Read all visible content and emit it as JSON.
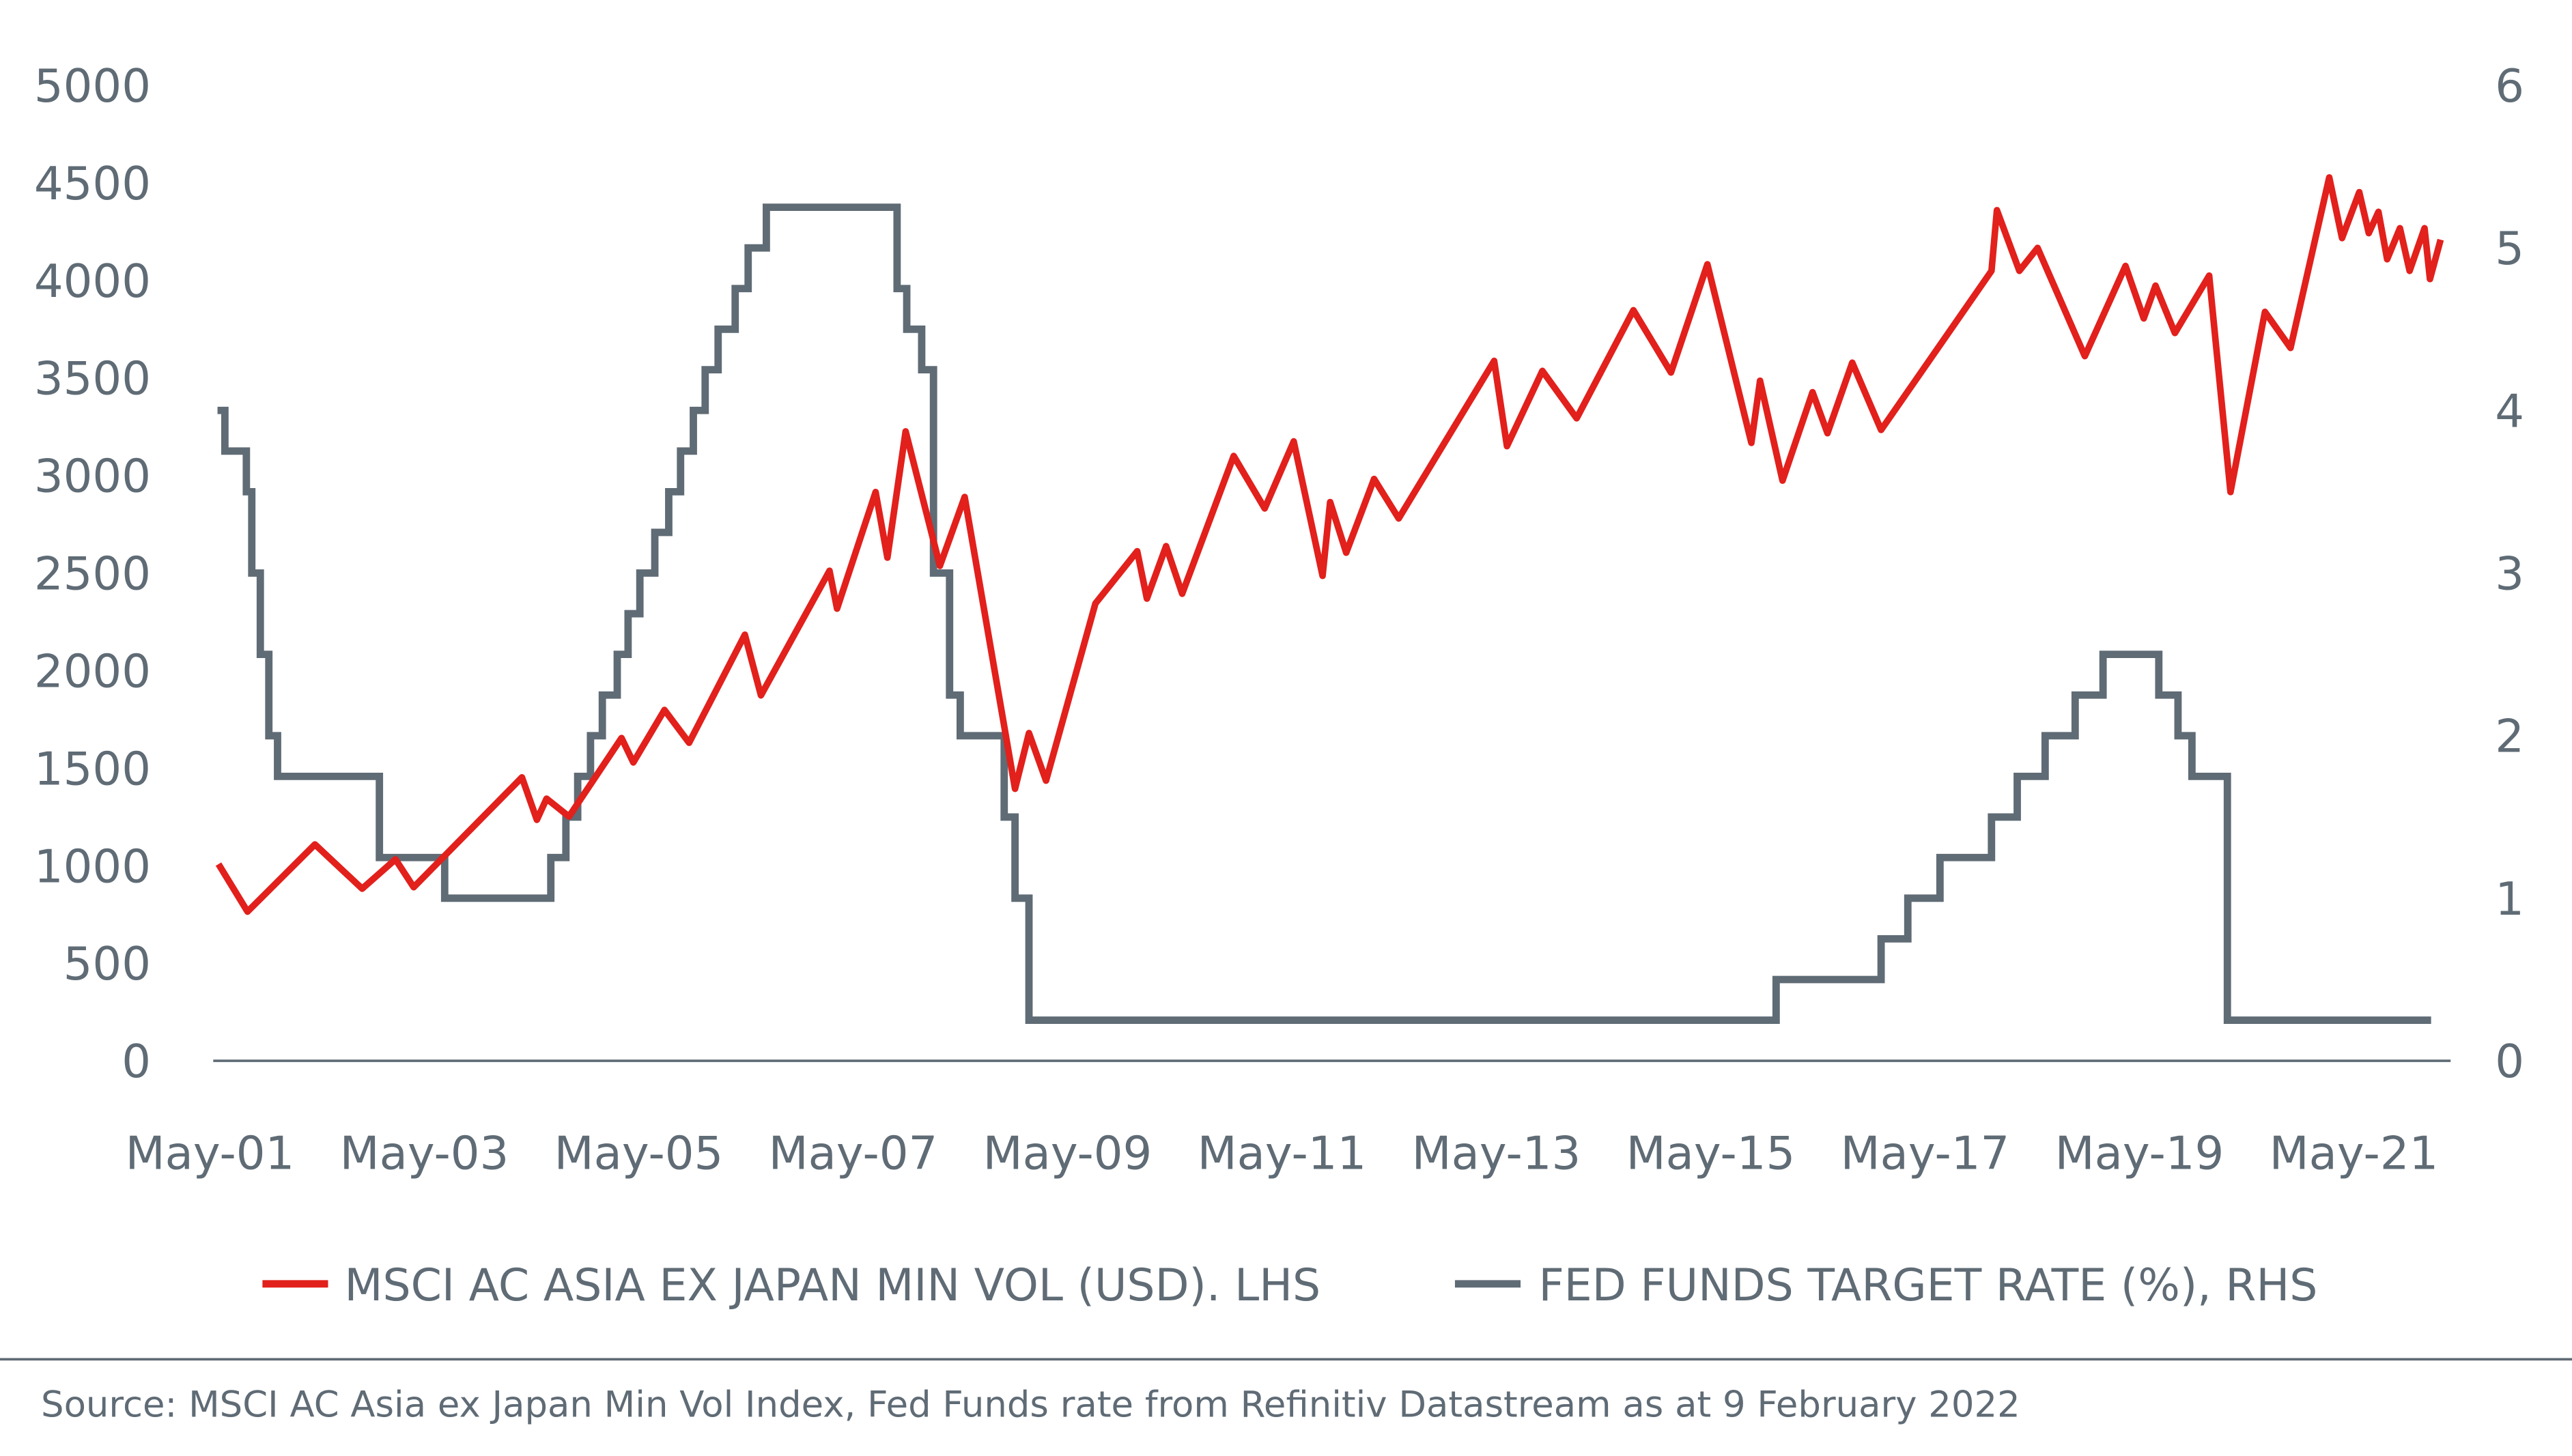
{
  "colors": {
    "msci": "#e2201c",
    "fed": "#5f6b75",
    "text": "#5f6b75"
  },
  "chart_data": {
    "type": "line",
    "title": "",
    "xlabel": "",
    "ylabel": "",
    "y2label": "",
    "ylim": [
      0,
      5000
    ],
    "y2lim": [
      0,
      6
    ],
    "xlim": [
      2001.33,
      2022.2
    ],
    "y_ticks": [
      "0",
      "500",
      "1000",
      "1500",
      "2000",
      "2500",
      "3000",
      "3500",
      "4000",
      "4500",
      "5000"
    ],
    "y2_ticks": [
      "0",
      "1",
      "2",
      "3",
      "4",
      "5",
      "6"
    ],
    "x_ticks": [
      {
        "label": "May-01",
        "x": 2001.33
      },
      {
        "label": "May-03",
        "x": 2003.33
      },
      {
        "label": "May-05",
        "x": 2005.33
      },
      {
        "label": "May-07",
        "x": 2007.33
      },
      {
        "label": "May-09",
        "x": 2009.33
      },
      {
        "label": "May-11",
        "x": 2011.33
      },
      {
        "label": "May-13",
        "x": 2013.33
      },
      {
        "label": "May-15",
        "x": 2015.33
      },
      {
        "label": "May-17",
        "x": 2017.33
      },
      {
        "label": "May-19",
        "x": 2019.33
      },
      {
        "label": "May-21",
        "x": 2021.33
      }
    ],
    "grid": false,
    "legend_position": "bottom",
    "series": [
      {
        "name": "MSCI AC ASIA EX JAPAN MIN VOL (USD). LHS",
        "axis": "left",
        "style": "line",
        "points": [
          [
            2001.41,
            1008
          ],
          [
            2001.68,
            765
          ],
          [
            2002.31,
            1109
          ],
          [
            2002.75,
            882
          ],
          [
            2003.06,
            1033
          ],
          [
            2003.23,
            890
          ],
          [
            2004.24,
            1453
          ],
          [
            2004.38,
            1235
          ],
          [
            2004.47,
            1344
          ],
          [
            2004.68,
            1252
          ],
          [
            2005.17,
            1655
          ],
          [
            2005.28,
            1529
          ],
          [
            2005.57,
            1798
          ],
          [
            2005.8,
            1630
          ],
          [
            2006.32,
            2184
          ],
          [
            2006.47,
            1873
          ],
          [
            2007.11,
            2512
          ],
          [
            2007.18,
            2318
          ],
          [
            2007.54,
            2915
          ],
          [
            2007.65,
            2579
          ],
          [
            2007.82,
            3226
          ],
          [
            2008.14,
            2537
          ],
          [
            2008.37,
            2890
          ],
          [
            2008.84,
            1394
          ],
          [
            2008.97,
            1680
          ],
          [
            2009.13,
            1436
          ],
          [
            2009.59,
            2344
          ],
          [
            2009.98,
            2612
          ],
          [
            2010.07,
            2369
          ],
          [
            2010.25,
            2638
          ],
          [
            2010.4,
            2394
          ],
          [
            2010.88,
            3100
          ],
          [
            2011.17,
            2831
          ],
          [
            2011.44,
            3175
          ],
          [
            2011.71,
            2486
          ],
          [
            2011.78,
            2864
          ],
          [
            2011.93,
            2604
          ],
          [
            2012.19,
            2982
          ],
          [
            2012.42,
            2780
          ],
          [
            2013.31,
            3587
          ],
          [
            2013.43,
            3150
          ],
          [
            2013.76,
            3536
          ],
          [
            2014.08,
            3293
          ],
          [
            2014.61,
            3847
          ],
          [
            2014.96,
            3528
          ],
          [
            2015.3,
            4082
          ],
          [
            2015.71,
            3167
          ],
          [
            2015.79,
            3486
          ],
          [
            2016.0,
            2974
          ],
          [
            2016.28,
            3427
          ],
          [
            2016.42,
            3217
          ],
          [
            2016.65,
            3578
          ],
          [
            2016.92,
            3234
          ],
          [
            2017.95,
            4049
          ],
          [
            2018.0,
            4360
          ],
          [
            2018.21,
            4049
          ],
          [
            2018.38,
            4166
          ],
          [
            2018.82,
            3612
          ],
          [
            2019.2,
            4074
          ],
          [
            2019.37,
            3805
          ],
          [
            2019.48,
            3973
          ],
          [
            2019.66,
            3730
          ],
          [
            2019.98,
            4024
          ],
          [
            2020.18,
            2915
          ],
          [
            2020.5,
            3839
          ],
          [
            2020.74,
            3654
          ],
          [
            2021.1,
            4528
          ],
          [
            2021.22,
            4217
          ],
          [
            2021.38,
            4452
          ],
          [
            2021.47,
            4242
          ],
          [
            2021.56,
            4351
          ],
          [
            2021.64,
            4108
          ],
          [
            2021.76,
            4267
          ],
          [
            2021.85,
            4049
          ],
          [
            2021.99,
            4267
          ],
          [
            2022.04,
            4007
          ],
          [
            2022.14,
            4208
          ]
        ]
      },
      {
        "name": "FED FUNDS TARGET RATE (%), RHS",
        "axis": "right",
        "style": "step-after",
        "points": [
          [
            2001.4,
            4.0
          ],
          [
            2001.47,
            3.75
          ],
          [
            2001.67,
            3.5
          ],
          [
            2001.72,
            3.0
          ],
          [
            2001.8,
            2.5
          ],
          [
            2001.88,
            2.0
          ],
          [
            2001.96,
            1.75
          ],
          [
            2002.91,
            1.25
          ],
          [
            2003.52,
            1.0
          ],
          [
            2004.51,
            1.25
          ],
          [
            2004.65,
            1.5
          ],
          [
            2004.76,
            1.75
          ],
          [
            2004.88,
            2.0
          ],
          [
            2004.99,
            2.25
          ],
          [
            2005.13,
            2.5
          ],
          [
            2005.23,
            2.75
          ],
          [
            2005.34,
            3.0
          ],
          [
            2005.48,
            3.25
          ],
          [
            2005.61,
            3.5
          ],
          [
            2005.72,
            3.75
          ],
          [
            2005.84,
            4.0
          ],
          [
            2005.95,
            4.25
          ],
          [
            2006.07,
            4.5
          ],
          [
            2006.23,
            4.75
          ],
          [
            2006.35,
            5.0
          ],
          [
            2006.52,
            5.25
          ],
          [
            2007.74,
            4.75
          ],
          [
            2007.83,
            4.5
          ],
          [
            2007.97,
            4.25
          ],
          [
            2008.08,
            3.0
          ],
          [
            2008.23,
            2.25
          ],
          [
            2008.33,
            2.0
          ],
          [
            2008.74,
            1.5
          ],
          [
            2008.84,
            1.0
          ],
          [
            2008.97,
            0.25
          ],
          [
            2015.94,
            0.5
          ],
          [
            2016.92,
            0.75
          ],
          [
            2017.17,
            1.0
          ],
          [
            2017.47,
            1.25
          ],
          [
            2017.95,
            1.5
          ],
          [
            2018.19,
            1.75
          ],
          [
            2018.45,
            2.0
          ],
          [
            2018.73,
            2.25
          ],
          [
            2018.99,
            2.5
          ],
          [
            2019.51,
            2.25
          ],
          [
            2019.69,
            2.0
          ],
          [
            2019.82,
            1.75
          ],
          [
            2020.15,
            0.25
          ],
          [
            2022.05,
            0.25
          ]
        ]
      }
    ]
  },
  "legend": {
    "msci": "MSCI AC ASIA EX JAPAN MIN VOL (USD). LHS",
    "fed": "FED FUNDS TARGET RATE (%), RHS"
  },
  "source": "Source: MSCI AC Asia ex Japan Min Vol Index, Fed Funds rate from Refinitiv Datastream as at 9 February 2022"
}
